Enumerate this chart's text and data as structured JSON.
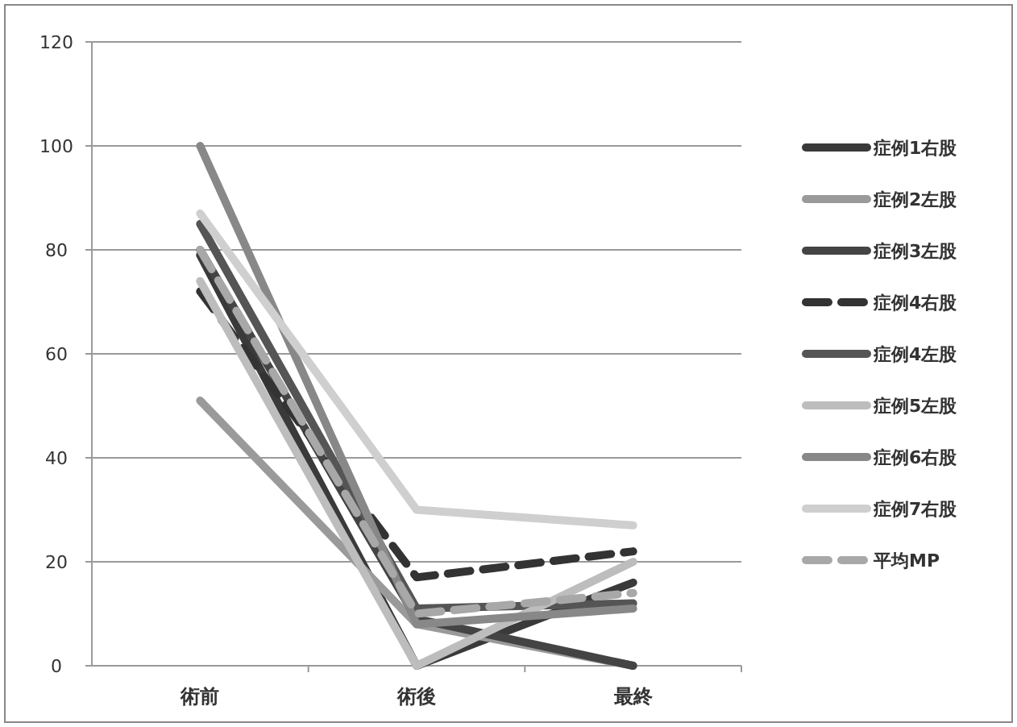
{
  "chart_data": {
    "type": "line",
    "categories": [
      "術前",
      "術後",
      "最終"
    ],
    "ylim": [
      0,
      120
    ],
    "yticks": [
      0,
      20,
      40,
      60,
      80,
      100,
      120
    ],
    "grid": "y",
    "legend": "right",
    "series": [
      {
        "name": "症例1右股",
        "color": "#3a3a3a",
        "values": [
          79,
          0,
          16
        ]
      },
      {
        "name": "症例2左股",
        "color": "#9a9a9a",
        "values": [
          51,
          8,
          0
        ]
      },
      {
        "name": "症例3左股",
        "color": "#444444",
        "values": [
          80,
          9,
          0
        ]
      },
      {
        "name": "症例4右股",
        "color": "#333333",
        "line_style": "dashed",
        "values": [
          72,
          17,
          22
        ]
      },
      {
        "name": "症例4左股",
        "color": "#555555",
        "values": [
          85,
          11,
          12
        ]
      },
      {
        "name": "症例5左股",
        "color": "#bdbdbd",
        "values": [
          74,
          0,
          20
        ]
      },
      {
        "name": "症例6右股",
        "color": "#888888",
        "values": [
          100,
          8,
          11
        ]
      },
      {
        "name": "症例7右股",
        "color": "#cfcfcf",
        "values": [
          87,
          30,
          27
        ]
      },
      {
        "name": "平均MP",
        "color": "#a8a8a8",
        "line_style": "dashed",
        "values": [
          80,
          10,
          14
        ]
      }
    ]
  }
}
